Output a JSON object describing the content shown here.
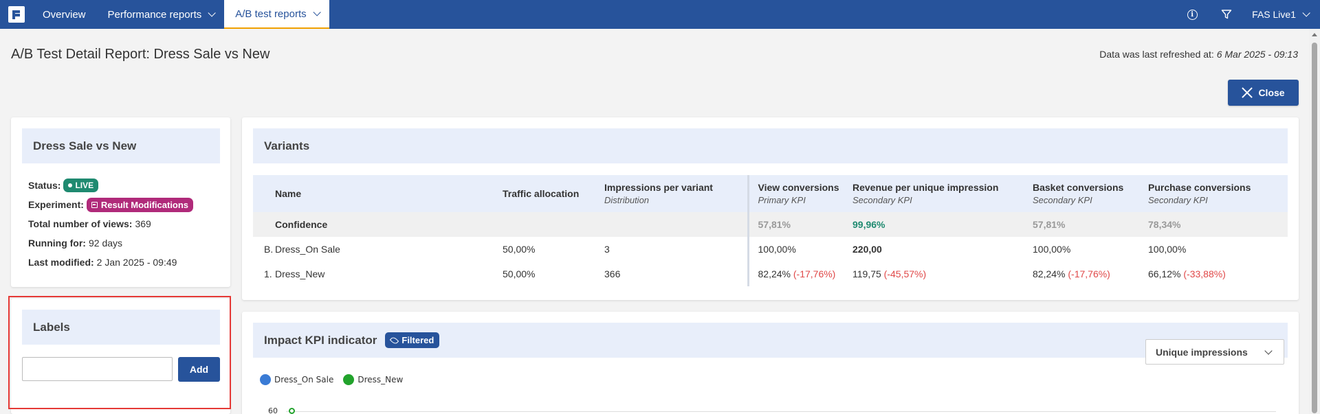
{
  "nav": {
    "items": [
      {
        "label": "Overview"
      },
      {
        "label": "Performance reports"
      },
      {
        "label": "A/B test reports"
      }
    ],
    "user": "FAS Live1"
  },
  "header": {
    "title": "A/B Test Detail Report: Dress Sale vs New",
    "refresh_label": "Data was last refreshed at:",
    "refresh_value": "6 Mar 2025 - 09:13",
    "close_label": "Close"
  },
  "info": {
    "title": "Dress Sale vs New",
    "status_label": "Status:",
    "status_value": "LIVE",
    "experiment_label": "Experiment:",
    "experiment_value": "Result Modifications",
    "views_label": "Total number of views:",
    "views_value": "369",
    "running_label": "Running for:",
    "running_value": "92 days",
    "modified_label": "Last modified:",
    "modified_value": "2 Jan 2025 - 09:49"
  },
  "labels": {
    "title": "Labels",
    "input_value": "",
    "add_label": "Add"
  },
  "variants": {
    "title": "Variants",
    "headers": {
      "name": "Name",
      "traffic": "Traffic allocation",
      "impressions": "Impressions per variant",
      "impressions_sub": "Distribution",
      "view_conv": "View conversions",
      "view_conv_sub": "Primary KPI",
      "revenue": "Revenue per unique impression",
      "revenue_sub": "Secondary KPI",
      "basket": "Basket conversions",
      "basket_sub": "Secondary KPI",
      "purchase": "Purchase conversions",
      "purchase_sub": "Secondary KPI"
    },
    "confidence": {
      "label": "Confidence",
      "view": "57,81%",
      "revenue": "99,96%",
      "basket": "57,81%",
      "purchase": "78,34%"
    },
    "rows": [
      {
        "marker": "B.",
        "name": "Dress_On Sale",
        "traffic": "50,00%",
        "impressions": "3",
        "view": "100,00%",
        "view_diff": "",
        "revenue": "220,00",
        "revenue_diff": "",
        "basket": "100,00%",
        "basket_diff": "",
        "purchase": "100,00%",
        "purchase_diff": ""
      },
      {
        "marker": "1.",
        "name": "Dress_New",
        "traffic": "50,00%",
        "impressions": "366",
        "view": "82,24%",
        "view_diff": "(-17,76%)",
        "revenue": "119,75",
        "revenue_diff": "(-45,57%)",
        "basket": "82,24%",
        "basket_diff": "(-17,76%)",
        "purchase": "66,12%",
        "purchase_diff": "(-33,88%)"
      }
    ]
  },
  "impact": {
    "title": "Impact KPI indicator",
    "filter_badge": "Filtered",
    "select_value": "Unique impressions",
    "legend": [
      {
        "name": "Dress_On Sale",
        "color": "#3a7bd5"
      },
      {
        "name": "Dress_New",
        "color": "#22a32c"
      }
    ],
    "y_tick": "60"
  }
}
